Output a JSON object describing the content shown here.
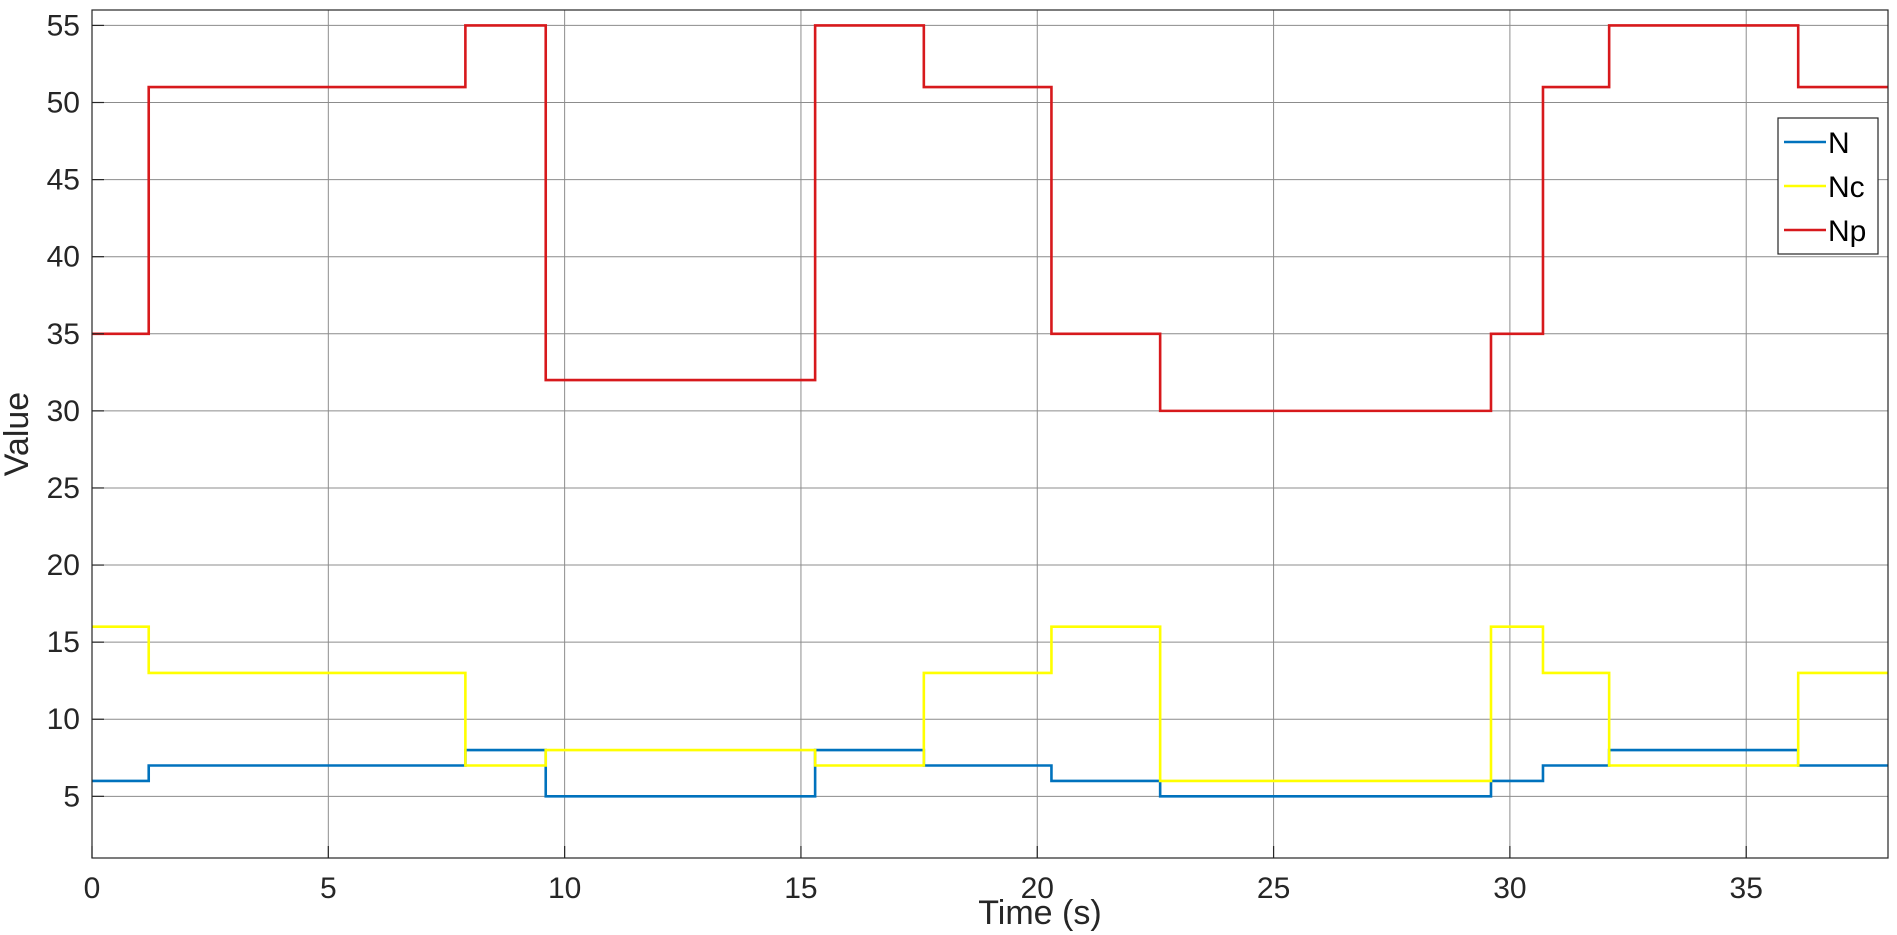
{
  "chart_data": {
    "type": "line",
    "step": true,
    "title": "",
    "xlabel": "Time (s)",
    "ylabel": "Value",
    "xlim": [
      0,
      38
    ],
    "ylim": [
      1,
      56
    ],
    "x_ticks": [
      0,
      5,
      10,
      15,
      20,
      25,
      30,
      35
    ],
    "x_tick_labels": [
      "0",
      "5",
      "10",
      "15",
      "20",
      "25",
      "30",
      "35"
    ],
    "y_ticks": [
      5,
      10,
      15,
      20,
      25,
      30,
      35,
      40,
      45,
      50,
      55
    ],
    "y_tick_labels": [
      "5",
      "10",
      "15",
      "20",
      "25",
      "30",
      "35",
      "40",
      "45",
      "50",
      "55"
    ],
    "grid": true,
    "legend_position": "top-right",
    "series": [
      {
        "name": "N",
        "color": "#0072BD",
        "x": [
          0,
          1.2,
          7.9,
          9.6,
          15.3,
          17.6,
          20.3,
          22.6,
          29.6,
          30.7,
          32.1,
          36.1,
          38
        ],
        "y": [
          6,
          7,
          8,
          5,
          8,
          7,
          6,
          5,
          6,
          7,
          8,
          7,
          7
        ]
      },
      {
        "name": "Nc",
        "color": "#FFFF00",
        "x": [
          0,
          1.2,
          7.9,
          9.6,
          15.3,
          17.6,
          20.3,
          22.6,
          29.6,
          30.7,
          32.1,
          36.1,
          38
        ],
        "y": [
          16,
          13,
          7,
          8,
          7,
          13,
          16,
          6,
          16,
          13,
          7,
          13,
          13
        ]
      },
      {
        "name": "Np",
        "color": "#D7191C",
        "x": [
          0,
          1.2,
          7.9,
          9.6,
          15.3,
          17.6,
          20.3,
          22.6,
          29.6,
          30.7,
          32.1,
          36.1,
          38
        ],
        "y": [
          35,
          51,
          55,
          32,
          55,
          51,
          35,
          30,
          35,
          51,
          55,
          51,
          51
        ]
      }
    ]
  }
}
